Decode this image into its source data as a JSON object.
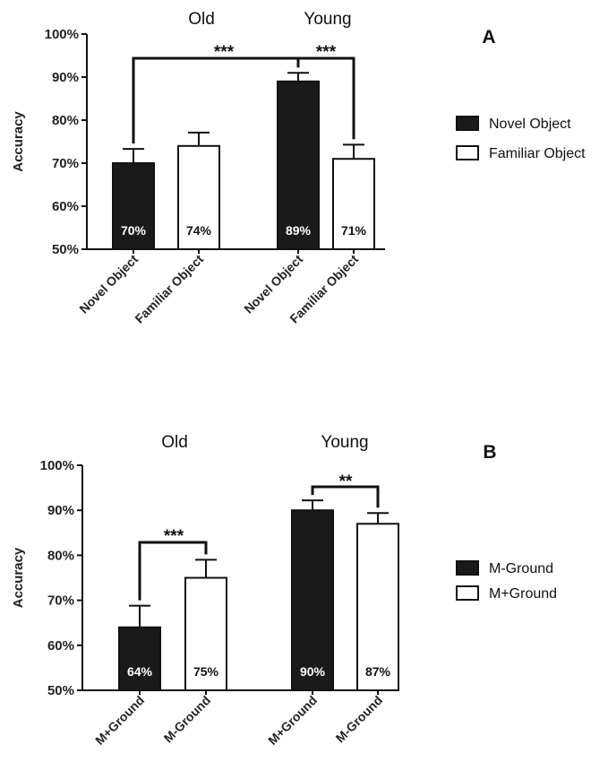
{
  "chart_data": [
    {
      "type": "bar",
      "panel": "A",
      "ylabel": "Accuracy",
      "ylim": [
        50,
        100
      ],
      "y_ticks": [
        "50%",
        "60%",
        "70%",
        "80%",
        "90%",
        "100%"
      ],
      "groups": [
        "Old",
        "Young"
      ],
      "legend": [
        "Novel Object",
        "Familiar Object"
      ],
      "legend_placement": "right",
      "bars": [
        {
          "group": "Old",
          "category": "Novel Object",
          "value": 70,
          "error": 3.3,
          "label": "70%",
          "fill": "#1a1a1a"
        },
        {
          "group": "Old",
          "category": "Familiar Object",
          "value": 74,
          "error": 3.1,
          "label": "74%",
          "fill": "#ffffff"
        },
        {
          "group": "Young",
          "category": "Novel Object",
          "value": 89,
          "error": 2.0,
          "label": "89%",
          "fill": "#1a1a1a"
        },
        {
          "group": "Young",
          "category": "Familiar Object",
          "value": 71,
          "error": 3.3,
          "label": "71%",
          "fill": "#ffffff"
        }
      ],
      "significance": [
        {
          "from_bar": 0,
          "to_bar": 2,
          "label": "***"
        },
        {
          "from_bar": 2,
          "to_bar": 3,
          "label": "***"
        }
      ]
    },
    {
      "type": "bar",
      "panel": "B",
      "ylabel": "Accuracy",
      "ylim": [
        50,
        100
      ],
      "y_ticks": [
        "50%",
        "60%",
        "70%",
        "80%",
        "90%",
        "100%"
      ],
      "groups": [
        "Old",
        "Young"
      ],
      "legend": [
        "M-Ground",
        "M+Ground"
      ],
      "legend_placement": "right",
      "bars": [
        {
          "group": "Old",
          "category": "M+Ground",
          "value": 64,
          "error": 4.8,
          "label": "64%",
          "fill": "#1a1a1a"
        },
        {
          "group": "Old",
          "category": "M-Ground",
          "value": 75,
          "error": 4.0,
          "label": "75%",
          "fill": "#ffffff"
        },
        {
          "group": "Young",
          "category": "M+Ground",
          "value": 90,
          "error": 2.2,
          "label": "90%",
          "fill": "#1a1a1a"
        },
        {
          "group": "Young",
          "category": "M-Ground",
          "value": 87,
          "error": 2.4,
          "label": "87%",
          "fill": "#ffffff"
        }
      ],
      "significance": [
        {
          "from_bar": 0,
          "to_bar": 1,
          "label": "***"
        },
        {
          "from_bar": 2,
          "to_bar": 3,
          "label": "**"
        }
      ]
    }
  ]
}
